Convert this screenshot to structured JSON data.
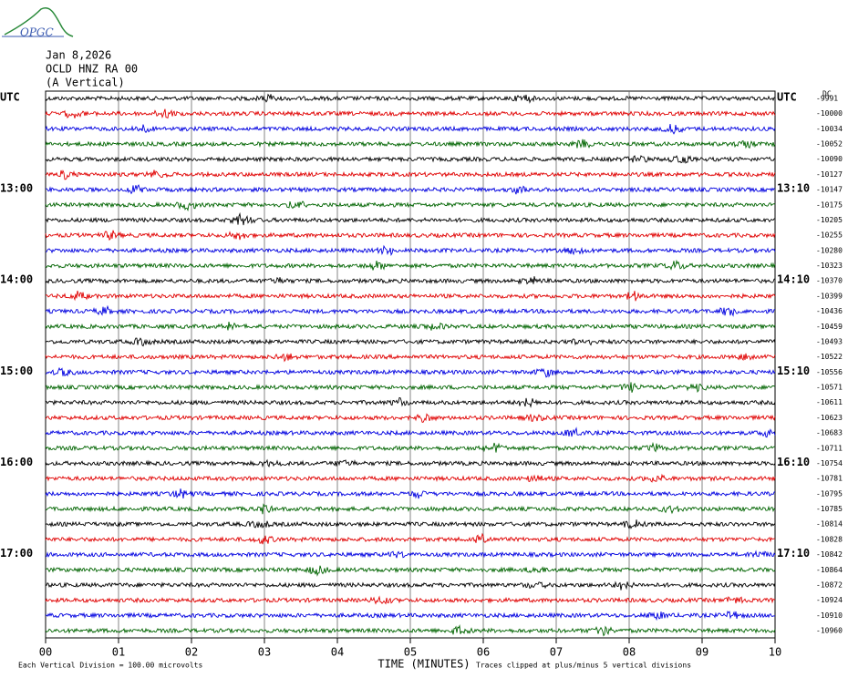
{
  "logo": "OPGC",
  "header": {
    "date": "Jan 8,2026",
    "station": "OCLD HNZ RA 00",
    "component": "(A Vertical)"
  },
  "left_labels": [
    "UTC",
    "13:00",
    "14:00",
    "15:00",
    "16:00",
    "17:00"
  ],
  "right_labels": [
    "UTC",
    "13:10",
    "14:10",
    "15:10",
    "16:10",
    "17:10"
  ],
  "dc_label": "DC",
  "offsets": [
    "-9991",
    "-10000",
    "-10034",
    "-10052",
    "-10090",
    "-10127",
    "-10147",
    "-10175",
    "-10205",
    "-10255",
    "-10280",
    "-10323",
    "-10370",
    "-10399",
    "-10436",
    "-10459",
    "-10493",
    "-10522",
    "-10556",
    "-10571",
    "-10611",
    "-10623",
    "-10683",
    "-10711",
    "-10754",
    "-10781",
    "-10795",
    "-10785",
    "-10814",
    "-10828",
    "-10842",
    "-10864",
    "-10872",
    "-10924",
    "-10910",
    "-10960"
  ],
  "trace_colors": [
    "#000000",
    "#e00000",
    "#0000e0",
    "#006400"
  ],
  "x_axis": {
    "title": "TIME (MINUTES)",
    "ticks": [
      "00",
      "01",
      "02",
      "03",
      "04",
      "05",
      "06",
      "07",
      "08",
      "09",
      "10"
    ]
  },
  "footer": {
    "scale": "Each Vertical Division =  100.00 microvolts",
    "clip": "Traces clipped at plus/minus 5 vertical divisions"
  }
}
